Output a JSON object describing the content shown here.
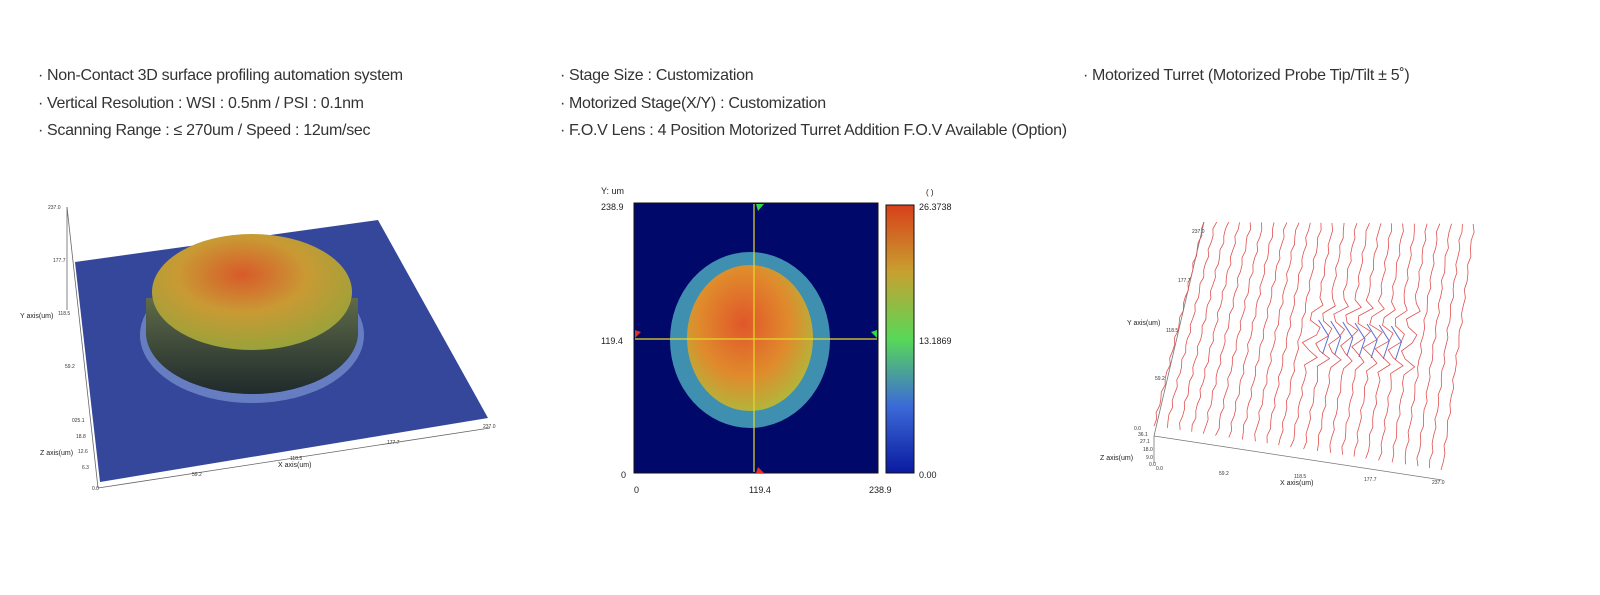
{
  "specs": {
    "col1": [
      "Non-Contact 3D surface profiling automation system",
      "Vertical Resolution : WSI : 0.5nm / PSI : 0.1nm",
      "Scanning Range : ≤ 270um / Speed : 12um/sec"
    ],
    "col2": [
      "Stage Size : Customization",
      "Motorized Stage(X/Y) :  Customization",
      "F.O.V Lens : 4 Position Motorized Turret Addition F.O.V Available (Option)"
    ],
    "col3": [
      "Motorized Turret (Motorized Probe Tip/Tilt ± 5˚)"
    ]
  },
  "bullet": "·",
  "fig1": {
    "y_axis_label": "Y axis(um)",
    "x_axis_label": "X axis(um)",
    "z_axis_label": "Z axis(um)",
    "y_ticks": [
      "237.0",
      "177.7",
      "118.5",
      "59.2"
    ],
    "z_ticks": [
      "025.1",
      "18.8",
      "12.6",
      "6.3",
      "0.0"
    ],
    "x_ticks": [
      "59.2",
      "118.5",
      "177.7",
      "237.0"
    ]
  },
  "fig2": {
    "y_unit_label": "Y: um",
    "y_ticks": [
      "238.9",
      "119.4",
      "0"
    ],
    "x_ticks": [
      "0",
      "119.4",
      "238.9"
    ],
    "colorbar_ticks": [
      "26.3738",
      "13.1869",
      "0.00"
    ],
    "colorbar_title": "( )",
    "colors": {
      "background": "#00086a",
      "outer_ring": "#3f8fb0",
      "inner": "#e0782a",
      "crosshair": "#e6d92a"
    }
  },
  "fig3": {
    "y_axis_label": "Y axis(um)",
    "x_axis_label": "X axis(um)",
    "z_axis_label": "Z axis(um)",
    "y_ticks": [
      "237.0",
      "177.7",
      "118.5",
      "59.2",
      "0.0"
    ],
    "z_ticks": [
      "36.1",
      "27.1",
      "18.0",
      "9.0",
      "0.0"
    ],
    "x_ticks": [
      "0.0",
      "59.2",
      "118.5",
      "177.7",
      "237.0"
    ],
    "colors": {
      "trace": "#e05050",
      "dip_trace": "#5a6fd0"
    }
  }
}
